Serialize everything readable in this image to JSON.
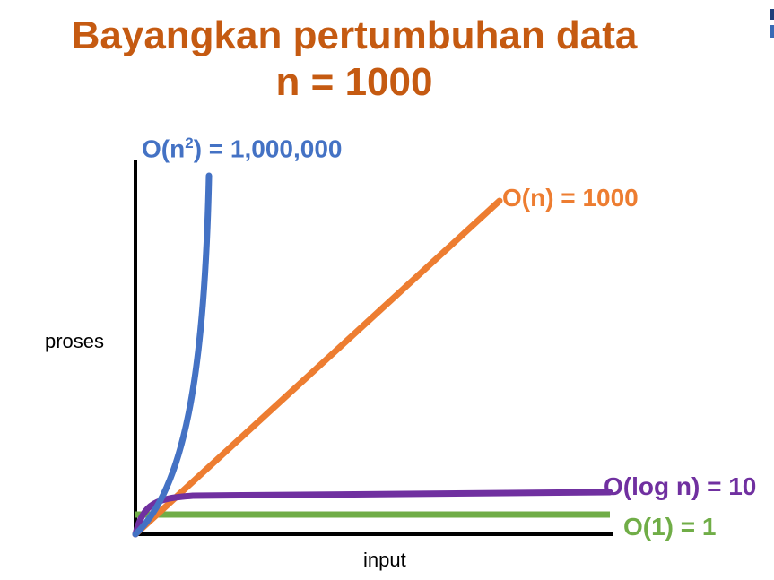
{
  "title": {
    "line1": "Bayangkan pertumbuhan data",
    "line2": "n = 1000"
  },
  "axes": {
    "xlabel": "input",
    "ylabel": "proses"
  },
  "curves": {
    "n_squared": {
      "label_base": "O(n",
      "label_exp": "2",
      "label_rest": ") = 1,000,000",
      "color": "#4472c4"
    },
    "linear": {
      "label": "O(n) = 1000",
      "color": "#ed7d31"
    },
    "log": {
      "label": "O(log n) = 10",
      "color": "#7030a0"
    },
    "constant": {
      "label": "O(1) = 1",
      "color": "#70ad47"
    }
  },
  "colors": {
    "title": "#c55a11",
    "axis": "#000000"
  }
}
